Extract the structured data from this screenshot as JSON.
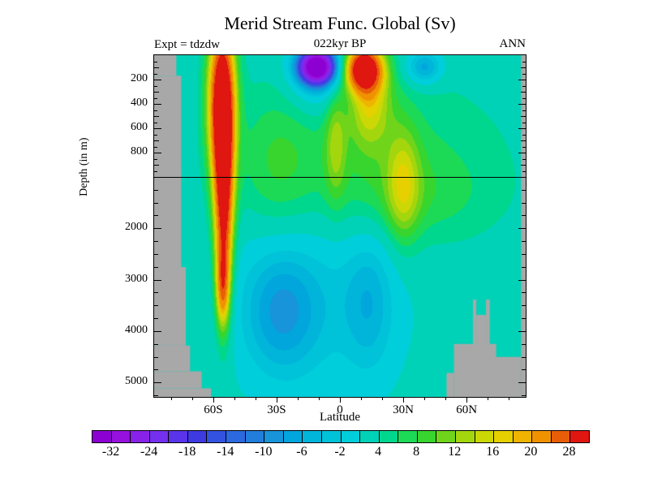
{
  "title": "Merid Stream Func. Global (Sv)",
  "annotations": {
    "experiment": "Expt = tdzdw",
    "time": "022kyr BP",
    "season": "ANN"
  },
  "chart_data": {
    "type": "heatmap",
    "subtype": "filled-contour-section",
    "title": "Merid Stream Func. Global (Sv)",
    "units": "Sv",
    "xlabel": "Latitude",
    "ylabel": "Depth (in m)",
    "grid": false,
    "x_axis": {
      "range_deg": [
        -88,
        88
      ],
      "major_ticks": [
        {
          "lat": -60,
          "label": "60S"
        },
        {
          "lat": -30,
          "label": "30S"
        },
        {
          "lat": 0,
          "label": "0"
        },
        {
          "lat": 30,
          "label": "30N"
        },
        {
          "lat": 60,
          "label": "60N"
        }
      ],
      "minor_step_deg": 10
    },
    "y_axis": {
      "orientation": "depth-downward",
      "split_depth_m": 1000,
      "upper_range_m": [
        0,
        1000
      ],
      "lower_range_m": [
        1000,
        5280
      ],
      "upper_labeled_ticks": [
        {
          "depth": 200,
          "label": "200"
        },
        {
          "depth": 400,
          "label": "400"
        },
        {
          "depth": 600,
          "label": "600"
        },
        {
          "depth": 800,
          "label": "800"
        }
      ],
      "lower_labeled_ticks": [
        {
          "depth": 2000,
          "label": "2000"
        },
        {
          "depth": 3000,
          "label": "3000"
        },
        {
          "depth": 4000,
          "label": "4000"
        },
        {
          "depth": 5000,
          "label": "5000"
        }
      ],
      "upper_minor_step_m": 50,
      "lower_minor_step_m": 250
    },
    "colorbar": {
      "position": "bottom",
      "n_cells": 26,
      "labels": [
        "-32",
        "-24",
        "-18",
        "-14",
        "-10",
        "-6",
        "-2",
        "4",
        "8",
        "12",
        "16",
        "20",
        "28"
      ],
      "levels": [
        -36,
        -32,
        -28,
        -24,
        -21,
        -18,
        -16,
        -14,
        -12,
        -10,
        -8,
        -6,
        -4,
        -2,
        1,
        4,
        6,
        8,
        10,
        12,
        14,
        16,
        18,
        20,
        24,
        28,
        32
      ],
      "colors": [
        "#8C00D2",
        "#9610DE",
        "#8822E8",
        "#7430EE",
        "#5A34EA",
        "#3E3AE2",
        "#3452E0",
        "#2C68DE",
        "#227EDC",
        "#1894DA",
        "#00A6DC",
        "#00B4DA",
        "#00C2D8",
        "#00CEDA",
        "#00D2B8",
        "#00D78E",
        "#1CDA56",
        "#38D52E",
        "#70D41A",
        "#A4D60E",
        "#CCD806",
        "#E6D000",
        "#EEB400",
        "#F09200",
        "#E85E08",
        "#E01610"
      ]
    },
    "field_units": "Sv",
    "background_value_sv": 2.5,
    "field_features": [
      {
        "name": "deacon-cell-upper",
        "lat": -56,
        "yfrac": 0.13,
        "amp": 30,
        "sigma_lat": 4.5,
        "sigma_y": 0.16
      },
      {
        "name": "deacon-cell-lower",
        "lat": -55,
        "yfrac": 0.42,
        "amp": 28,
        "sigma_lat": 3.2,
        "sigma_y": 0.22
      },
      {
        "name": "deacon-cell-deep-tip",
        "lat": -55.5,
        "yfrac": 0.68,
        "amp": 14,
        "sigma_lat": 2.2,
        "sigma_y": 0.08
      },
      {
        "name": "s-subtropical-cell-negative",
        "lat": -11,
        "yfrac": 0.035,
        "amp": -40,
        "sigma_lat": 6.0,
        "sigma_y": 0.035
      },
      {
        "name": "s-tropical-blue-halo",
        "lat": -10,
        "yfrac": 0.05,
        "amp": -8,
        "sigma_lat": 10,
        "sigma_y": 0.08
      },
      {
        "name": "n-subtropical-cell-positive",
        "lat": 11,
        "yfrac": 0.04,
        "amp": 30,
        "sigma_lat": 6.0,
        "sigma_y": 0.045
      },
      {
        "name": "n-tropical-warm-tail",
        "lat": 14,
        "yfrac": 0.12,
        "amp": 12,
        "sigma_lat": 7,
        "sigma_y": 0.1
      },
      {
        "name": "n-midlat-surface-negative",
        "lat": 40,
        "yfrac": 0.035,
        "amp": -10,
        "sigma_lat": 6,
        "sigma_y": 0.035
      },
      {
        "name": "mid-depth-positive-broad",
        "lat": 15,
        "yfrac": 0.3,
        "amp": 4.5,
        "sigma_lat": 42,
        "sigma_y": 0.17
      },
      {
        "name": "s-mid-depth-green",
        "lat": -30,
        "yfrac": 0.33,
        "amp": 4,
        "sigma_lat": 12,
        "sigma_y": 0.15
      },
      {
        "name": "equatorial-yellow-streak",
        "lat": -2,
        "yfrac": 0.25,
        "amp": 7,
        "sigma_lat": 3.5,
        "sigma_y": 0.12
      },
      {
        "name": "nadw-yellow-core-30n",
        "lat": 30,
        "yfrac": 0.38,
        "amp": 9,
        "sigma_lat": 5.5,
        "sigma_y": 0.12
      },
      {
        "name": "nadw-green-band",
        "lat": 33,
        "yfrac": 0.42,
        "amp": 3,
        "sigma_lat": 26,
        "sigma_y": 0.09
      },
      {
        "name": "abyssal-negative-broad",
        "lat": -12,
        "yfrac": 0.72,
        "amp": -5,
        "sigma_lat": 30,
        "sigma_y": 0.2
      },
      {
        "name": "aabw-cell-core",
        "lat": -28,
        "yfrac": 0.75,
        "amp": -7.5,
        "sigma_lat": 12,
        "sigma_y": 0.13
      },
      {
        "name": "n-deep-negative-column",
        "lat": 14,
        "yfrac": 0.72,
        "amp": -5.5,
        "sigma_lat": 8,
        "sigma_y": 0.15
      }
    ],
    "topography": {
      "color": "#A8A8A8",
      "rects": [
        {
          "lat": [
            -88,
            -77.5
          ],
          "yfrac": [
            0,
            0.06
          ]
        },
        {
          "lat": [
            -88,
            -75.2
          ],
          "yfrac": [
            0.06,
            0.62
          ]
        },
        {
          "lat": [
            -88,
            -73
          ],
          "yfrac": [
            0.62,
            0.85
          ]
        },
        {
          "lat": [
            -88,
            -71
          ],
          "yfrac": [
            0.85,
            0.925
          ]
        },
        {
          "lat": [
            -88,
            -65.5
          ],
          "yfrac": [
            0.925,
            0.975
          ]
        },
        {
          "lat": [
            -88,
            -61
          ],
          "yfrac": [
            0.975,
            1
          ]
        },
        {
          "lat": [
            85.8,
            88
          ],
          "yfrac": [
            0,
            1
          ]
        },
        {
          "lat": [
            63,
            64.6
          ],
          "yfrac": [
            0.715,
            1
          ]
        },
        {
          "lat": [
            69.2,
            71
          ],
          "yfrac": [
            0.715,
            1
          ]
        },
        {
          "lat": [
            64.6,
            69.2
          ],
          "yfrac": [
            0.76,
            1
          ]
        },
        {
          "lat": [
            54,
            74
          ],
          "yfrac": [
            0.845,
            1
          ]
        },
        {
          "lat": [
            50.5,
            54
          ],
          "yfrac": [
            0.93,
            1
          ]
        },
        {
          "lat": [
            71,
            85.8
          ],
          "yfrac": [
            0.883,
            1
          ]
        }
      ]
    }
  },
  "colors": {
    "page_background": "#FFFFFF",
    "frame": "#000000",
    "text": "#000000",
    "missing_data_gray": "#A8A8A8"
  }
}
